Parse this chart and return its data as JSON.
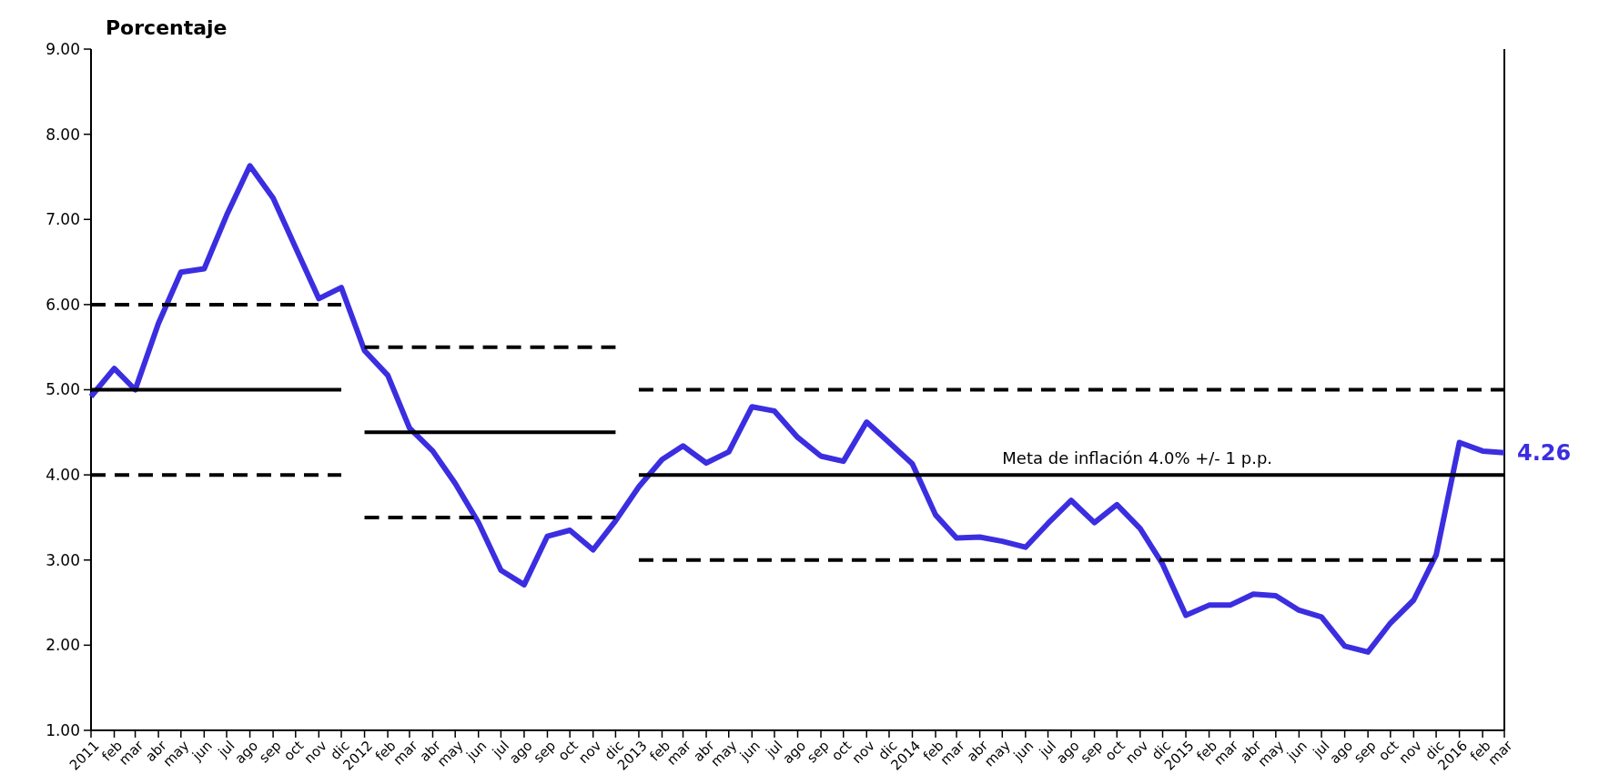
{
  "chart_data": {
    "type": "line",
    "ylabel": "Porcentaje",
    "xlim": [
      "2011-01",
      "2016-03"
    ],
    "xticks": [
      {
        "value": "2011-01",
        "label": "2011"
      },
      {
        "value": "2011-02",
        "label": "feb"
      },
      {
        "value": "2011-03",
        "label": "mar"
      },
      {
        "value": "2011-04",
        "label": "abr"
      },
      {
        "value": "2011-05",
        "label": "may"
      },
      {
        "value": "2011-06",
        "label": "jun"
      },
      {
        "value": "2011-07",
        "label": "jul"
      },
      {
        "value": "2011-08",
        "label": "ago"
      },
      {
        "value": "2011-09",
        "label": "sep"
      },
      {
        "value": "2011-10",
        "label": "oct"
      },
      {
        "value": "2011-11",
        "label": "nov"
      },
      {
        "value": "2011-12",
        "label": "dic"
      },
      {
        "value": "2012-01",
        "label": "2012"
      },
      {
        "value": "2012-02",
        "label": "feb"
      },
      {
        "value": "2012-03",
        "label": "mar"
      },
      {
        "value": "2012-04",
        "label": "abr"
      },
      {
        "value": "2012-05",
        "label": "may"
      },
      {
        "value": "2012-06",
        "label": "jun"
      },
      {
        "value": "2012-07",
        "label": "jul"
      },
      {
        "value": "2012-08",
        "label": "ago"
      },
      {
        "value": "2012-09",
        "label": "sep"
      },
      {
        "value": "2012-10",
        "label": "oct"
      },
      {
        "value": "2012-11",
        "label": "nov"
      },
      {
        "value": "2012-12",
        "label": "dic"
      },
      {
        "value": "2013-01",
        "label": "2013"
      },
      {
        "value": "2013-02",
        "label": "feb"
      },
      {
        "value": "2013-03",
        "label": "mar"
      },
      {
        "value": "2013-04",
        "label": "abr"
      },
      {
        "value": "2013-05",
        "label": "may"
      },
      {
        "value": "2013-06",
        "label": "jun"
      },
      {
        "value": "2013-07",
        "label": "jul"
      },
      {
        "value": "2013-08",
        "label": "ago"
      },
      {
        "value": "2013-09",
        "label": "sep"
      },
      {
        "value": "2013-10",
        "label": "oct"
      },
      {
        "value": "2013-11",
        "label": "nov"
      },
      {
        "value": "2013-12",
        "label": "dic"
      },
      {
        "value": "2014-01",
        "label": "2014"
      },
      {
        "value": "2014-02",
        "label": "feb"
      },
      {
        "value": "2014-03",
        "label": "mar"
      },
      {
        "value": "2014-04",
        "label": "abr"
      },
      {
        "value": "2014-05",
        "label": "may"
      },
      {
        "value": "2014-06",
        "label": "jun"
      },
      {
        "value": "2014-07",
        "label": "jul"
      },
      {
        "value": "2014-08",
        "label": "ago"
      },
      {
        "value": "2014-09",
        "label": "sep"
      },
      {
        "value": "2014-10",
        "label": "oct"
      },
      {
        "value": "2014-11",
        "label": "nov"
      },
      {
        "value": "2014-12",
        "label": "dic"
      },
      {
        "value": "2015-01",
        "label": "2015"
      },
      {
        "value": "2015-02",
        "label": "feb"
      },
      {
        "value": "2015-03",
        "label": "mar"
      },
      {
        "value": "2015-04",
        "label": "abr"
      },
      {
        "value": "2015-05",
        "label": "may"
      },
      {
        "value": "2015-06",
        "label": "jun"
      },
      {
        "value": "2015-07",
        "label": "jul"
      },
      {
        "value": "2015-08",
        "label": "ago"
      },
      {
        "value": "2015-09",
        "label": "sep"
      },
      {
        "value": "2015-10",
        "label": "oct"
      },
      {
        "value": "2015-11",
        "label": "nov"
      },
      {
        "value": "2015-12",
        "label": "dic"
      },
      {
        "value": "2016-01",
        "label": "2016"
      },
      {
        "value": "2016-02",
        "label": "feb"
      },
      {
        "value": "2016-03",
        "label": "mar"
      }
    ],
    "ylim": [
      1,
      9
    ],
    "yticks": [
      {
        "value": 1,
        "label": "1.00"
      },
      {
        "value": 2,
        "label": "2.00"
      },
      {
        "value": 3,
        "label": "3.00"
      },
      {
        "value": 4,
        "label": "4.00"
      },
      {
        "value": 5,
        "label": "5.00"
      },
      {
        "value": 6,
        "label": "6.00"
      },
      {
        "value": 7,
        "label": "7.00"
      },
      {
        "value": 8,
        "label": "8.00"
      },
      {
        "value": 9,
        "label": "9.00"
      }
    ],
    "x": [
      "2011-01",
      "2011-02",
      "2011-03",
      "2011-04",
      "2011-05",
      "2011-06",
      "2011-07",
      "2011-08",
      "2011-09",
      "2011-10",
      "2011-11",
      "2011-12",
      "2012-01",
      "2012-02",
      "2012-03",
      "2012-04",
      "2012-05",
      "2012-06",
      "2012-07",
      "2012-08",
      "2012-09",
      "2012-10",
      "2012-11",
      "2012-12",
      "2013-01",
      "2013-02",
      "2013-03",
      "2013-04",
      "2013-05",
      "2013-06",
      "2013-07",
      "2013-08",
      "2013-09",
      "2013-10",
      "2013-11",
      "2013-12",
      "2014-01",
      "2014-02",
      "2014-03",
      "2014-04",
      "2014-05",
      "2014-06",
      "2014-07",
      "2014-08",
      "2014-09",
      "2014-10",
      "2014-11",
      "2014-12",
      "2015-01",
      "2015-02",
      "2015-03",
      "2015-04",
      "2015-05",
      "2015-06",
      "2015-07",
      "2015-08",
      "2015-09",
      "2015-10",
      "2015-11",
      "2015-12",
      "2016-01",
      "2016-02",
      "2016-03"
    ],
    "series": [
      {
        "color": "#3b2ee0",
        "line_style": "solid",
        "values": [
          4.92,
          5.25,
          5.0,
          5.78,
          6.38,
          6.42,
          7.05,
          7.63,
          7.25,
          6.67,
          6.07,
          6.2,
          5.46,
          5.17,
          4.55,
          4.28,
          3.9,
          3.44,
          2.88,
          2.71,
          3.28,
          3.35,
          3.12,
          3.46,
          3.86,
          4.18,
          4.34,
          4.14,
          4.27,
          4.8,
          4.75,
          4.44,
          4.22,
          4.16,
          4.62,
          4.38,
          4.13,
          3.53,
          3.26,
          3.27,
          3.22,
          3.15,
          3.43,
          3.7,
          3.44,
          3.65,
          3.37,
          2.95,
          2.35,
          2.47,
          2.47,
          2.6,
          2.58,
          2.41,
          2.33,
          1.99,
          1.92,
          2.26,
          2.53,
          3.06,
          4.38,
          4.28,
          4.26
        ],
        "value_labels": [
          null,
          null,
          null,
          null,
          null,
          null,
          null,
          null,
          null,
          null,
          null,
          null,
          null,
          null,
          null,
          null,
          null,
          null,
          null,
          null,
          null,
          null,
          null,
          null,
          null,
          null,
          null,
          null,
          null,
          null,
          null,
          null,
          null,
          null,
          null,
          null,
          null,
          null,
          null,
          null,
          null,
          null,
          null,
          null,
          null,
          null,
          null,
          null,
          null,
          null,
          null,
          null,
          null,
          null,
          null,
          null,
          null,
          null,
          null,
          null,
          null,
          null,
          "4.26"
        ]
      },
      {
        "type": "line",
        "color": "#000000",
        "line_style": "dashed",
        "x": [
          "2011-01",
          "2011-12"
        ],
        "values": [
          6,
          6
        ]
      },
      {
        "type": "line",
        "color": "#000000",
        "line_style": "solid",
        "x": [
          "2011-01",
          "2011-12"
        ],
        "values": [
          5,
          5
        ]
      },
      {
        "type": "line",
        "color": "#000000",
        "line_style": "dashed",
        "x": [
          "2011-01",
          "2011-12"
        ],
        "values": [
          4,
          4
        ]
      },
      {
        "type": "line",
        "color": "#000000",
        "line_style": "dashed",
        "x": [
          "2012-01",
          "2012-12"
        ],
        "values": [
          5.5,
          5.5
        ]
      },
      {
        "type": "line",
        "color": "#000000",
        "line_style": "solid",
        "x": [
          "2012-01",
          "2012-12"
        ],
        "values": [
          4.5,
          4.5
        ]
      },
      {
        "type": "line",
        "color": "#000000",
        "line_style": "dashed",
        "x": [
          "2012-01",
          "2012-12"
        ],
        "values": [
          3.5,
          3.5
        ]
      },
      {
        "type": "line",
        "color": "#000000",
        "line_style": "dashed",
        "x": [
          "2013-01",
          "2016-03"
        ],
        "values": [
          5,
          5
        ]
      },
      {
        "type": "line",
        "color": "#000000",
        "line_style": "solid",
        "x": [
          "2013-01",
          "2016-03"
        ],
        "values": [
          4,
          4
        ]
      },
      {
        "type": "line",
        "color": "#000000",
        "line_style": "dashed",
        "x": [
          "2013-01",
          "2016-03"
        ],
        "values": [
          3,
          3
        ]
      }
    ],
    "annotations": [
      {
        "text": "Meta de inflación 4.0% +/- 1 p.p.",
        "x": "2014-05",
        "y": 4
      }
    ]
  }
}
